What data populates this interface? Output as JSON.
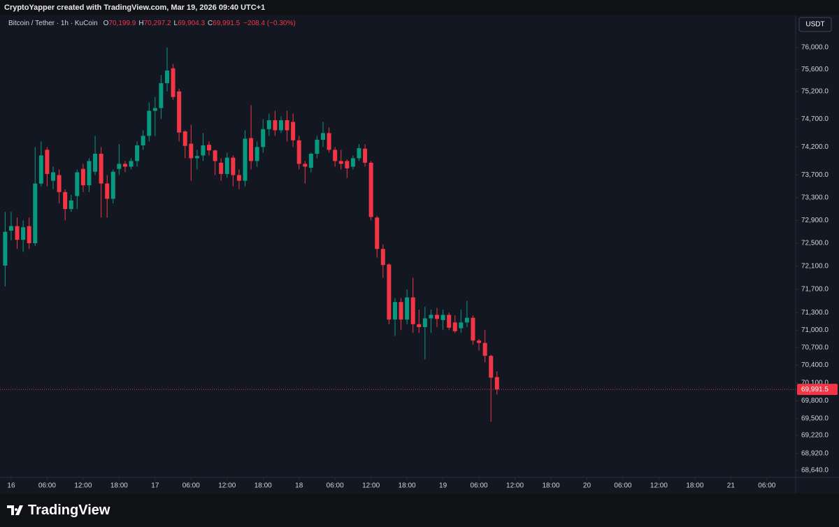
{
  "header": {
    "credit": "CryptoYapper created with TradingView.com, Mar 19, 2026 09:40 UTC+1"
  },
  "chart_data": {
    "type": "candlestick",
    "symbol": "Bitcoin / Tether · 1h · KuCoin",
    "ohlc_labels": [
      "O",
      "H",
      "L",
      "C"
    ],
    "ohlc_values": [
      "70,199.9",
      "70,297.2",
      "69,904.3",
      "69,991.5"
    ],
    "change": "−208.4 (−0.30%)",
    "currency": "USDT",
    "up_color": "#089981",
    "down_color": "#f23645",
    "log_scale": true,
    "grid": false,
    "x": [
      -1,
      0,
      1,
      2,
      3,
      4,
      5,
      6,
      7,
      8,
      9,
      10,
      11,
      12,
      13,
      14,
      15,
      16,
      17,
      18,
      19,
      20,
      21,
      22,
      23,
      24,
      25,
      26,
      27,
      28,
      29,
      30,
      31,
      32,
      33,
      34,
      35,
      36,
      37,
      38,
      39,
      40,
      41,
      42,
      43,
      44,
      45,
      46,
      47,
      48,
      49,
      50,
      51,
      52,
      53,
      54,
      55,
      56,
      57,
      58,
      59,
      60,
      61,
      62,
      63,
      64,
      65,
      66,
      67,
      68,
      69,
      70,
      71,
      72,
      73,
      74,
      75,
      76,
      77,
      78,
      79,
      80,
      81
    ],
    "open": [
      72110,
      72720,
      72800,
      72560,
      72800,
      72500,
      73550,
      74150,
      73600,
      73700,
      73400,
      73100,
      73330,
      73810,
      73520,
      73760,
      74080,
      73550,
      73280,
      73810,
      73900,
      73850,
      73950,
      74230,
      74400,
      74850,
      74900,
      75350,
      75620,
      75200,
      74480,
      74260,
      74000,
      74050,
      74240,
      74140,
      73920,
      73720,
      74010,
      73700,
      73600,
      74360,
      73950,
      74200,
      74520,
      74680,
      74500,
      74680,
      74650,
      74320,
      73900,
      73830,
      74080,
      74330,
      74450,
      74150,
      73950,
      73950,
      73850,
      74000,
      74170,
      73920,
      72950,
      72400,
      72130,
      71180,
      71480,
      71180,
      71560,
      71100,
      71050,
      71200,
      71260,
      71170,
      71260,
      71130,
      71030,
      71130,
      71210,
      70820,
      70780,
      70560,
      70199.9
    ],
    "high": [
      73050,
      73050,
      72950,
      72900,
      72950,
      74200,
      74300,
      74200,
      73850,
      73800,
      73450,
      73350,
      73800,
      73900,
      74000,
      74400,
      74200,
      73700,
      73800,
      74250,
      73950,
      74000,
      74300,
      74500,
      75000,
      75100,
      75500,
      76000,
      75700,
      75250,
      74500,
      74600,
      74150,
      74450,
      74300,
      74150,
      74000,
      74100,
      74050,
      73800,
      74500,
      74950,
      74300,
      74700,
      74800,
      74850,
      74750,
      74850,
      74800,
      74400,
      73950,
      74100,
      74400,
      74650,
      74550,
      74200,
      74150,
      73980,
      74050,
      74250,
      74250,
      73950,
      72980,
      72480,
      72150,
      71550,
      71550,
      71700,
      71900,
      71350,
      71400,
      71350,
      71380,
      71350,
      71300,
      71250,
      71350,
      71500,
      71250,
      70850,
      71000,
      70580,
      70297.2
    ],
    "low": [
      71750,
      72550,
      72400,
      72350,
      72400,
      72450,
      73500,
      73500,
      73450,
      73200,
      72900,
      73050,
      73100,
      73400,
      73400,
      73700,
      72950,
      72950,
      73200,
      73700,
      73750,
      73800,
      73850,
      74150,
      74300,
      74400,
      74700,
      75200,
      75050,
      74300,
      74000,
      73600,
      73800,
      73950,
      74050,
      73700,
      73600,
      73650,
      73500,
      73450,
      73500,
      73800,
      73850,
      74100,
      74400,
      74400,
      74450,
      74300,
      74200,
      73800,
      73550,
      73750,
      74000,
      74200,
      74100,
      73850,
      73800,
      73650,
      73800,
      73950,
      73850,
      72900,
      72250,
      71900,
      71100,
      70900,
      71000,
      71100,
      70950,
      70950,
      70500,
      70950,
      71050,
      71000,
      71000,
      70950,
      70950,
      71050,
      70750,
      70650,
      70450,
      69450,
      69904.3
    ],
    "close": [
      72700,
      72800,
      72560,
      72780,
      72500,
      73550,
      74050,
      73720,
      73750,
      73400,
      73100,
      73250,
      73750,
      73520,
      73950,
      74080,
      73550,
      73280,
      73760,
      73900,
      73850,
      73950,
      74230,
      74400,
      74850,
      74900,
      75350,
      75580,
      75100,
      74460,
      74220,
      74000,
      74040,
      74230,
      74140,
      73950,
      73720,
      74010,
      73700,
      73600,
      74350,
      73950,
      74200,
      74520,
      74680,
      74500,
      74680,
      74500,
      74320,
      73900,
      73850,
      74080,
      74330,
      74450,
      74150,
      73950,
      73900,
      73820,
      74000,
      74180,
      73920,
      72960,
      72400,
      72120,
      71180,
      71480,
      71180,
      71560,
      71100,
      71050,
      71200,
      71260,
      71190,
      71260,
      71040,
      70980,
      71130,
      71210,
      70820,
      70780,
      70560,
      70190,
      69991.5
    ],
    "xlim": [
      -1.86,
      130.8
    ],
    "ylim": [
      68524,
      76591
    ],
    "xticks": [
      {
        "value": 0,
        "label": "16"
      },
      {
        "value": 6,
        "label": "06:00"
      },
      {
        "value": 12,
        "label": "12:00"
      },
      {
        "value": 18,
        "label": "18:00"
      },
      {
        "value": 24,
        "label": "17"
      },
      {
        "value": 30,
        "label": "06:00"
      },
      {
        "value": 36,
        "label": "12:00"
      },
      {
        "value": 42,
        "label": "18:00"
      },
      {
        "value": 48,
        "label": "18"
      },
      {
        "value": 54,
        "label": "06:00"
      },
      {
        "value": 60,
        "label": "12:00"
      },
      {
        "value": 66,
        "label": "18:00"
      },
      {
        "value": 72,
        "label": "19"
      },
      {
        "value": 78,
        "label": "06:00"
      },
      {
        "value": 84,
        "label": "12:00"
      },
      {
        "value": 90,
        "label": "18:00"
      },
      {
        "value": 96,
        "label": "20"
      },
      {
        "value": 102,
        "label": "06:00"
      },
      {
        "value": 108,
        "label": "12:00"
      },
      {
        "value": 114,
        "label": "18:00"
      },
      {
        "value": 120,
        "label": "21"
      },
      {
        "value": 126,
        "label": "06:00"
      }
    ],
    "yticks": [
      {
        "value": 76000,
        "label": "76,000.0"
      },
      {
        "value": 75600,
        "label": "75,600.0"
      },
      {
        "value": 75200,
        "label": "75,200.0"
      },
      {
        "value": 74700,
        "label": "74,700.0"
      },
      {
        "value": 74200,
        "label": "74,200.0"
      },
      {
        "value": 73700,
        "label": "73,700.0"
      },
      {
        "value": 73300,
        "label": "73,300.0"
      },
      {
        "value": 72900,
        "label": "72,900.0"
      },
      {
        "value": 72500,
        "label": "72,500.0"
      },
      {
        "value": 72100,
        "label": "72,100.0"
      },
      {
        "value": 71700,
        "label": "71,700.0"
      },
      {
        "value": 71300,
        "label": "71,300.0"
      },
      {
        "value": 71000,
        "label": "71,000.0"
      },
      {
        "value": 70700,
        "label": "70,700.0"
      },
      {
        "value": 70400,
        "label": "70,400.0"
      },
      {
        "value": 70100,
        "label": "70,100.0"
      },
      {
        "value": 69800,
        "label": "69,800.0"
      },
      {
        "value": 69500,
        "label": "69,500.0"
      },
      {
        "value": 69220,
        "label": "69,220.0"
      },
      {
        "value": 68920,
        "label": "68,920.0"
      },
      {
        "value": 68640,
        "label": "68,640.0"
      }
    ],
    "last_price": {
      "value": 69991.5,
      "label": "69,991.5"
    }
  },
  "footer": {
    "brand": "TradingView"
  }
}
